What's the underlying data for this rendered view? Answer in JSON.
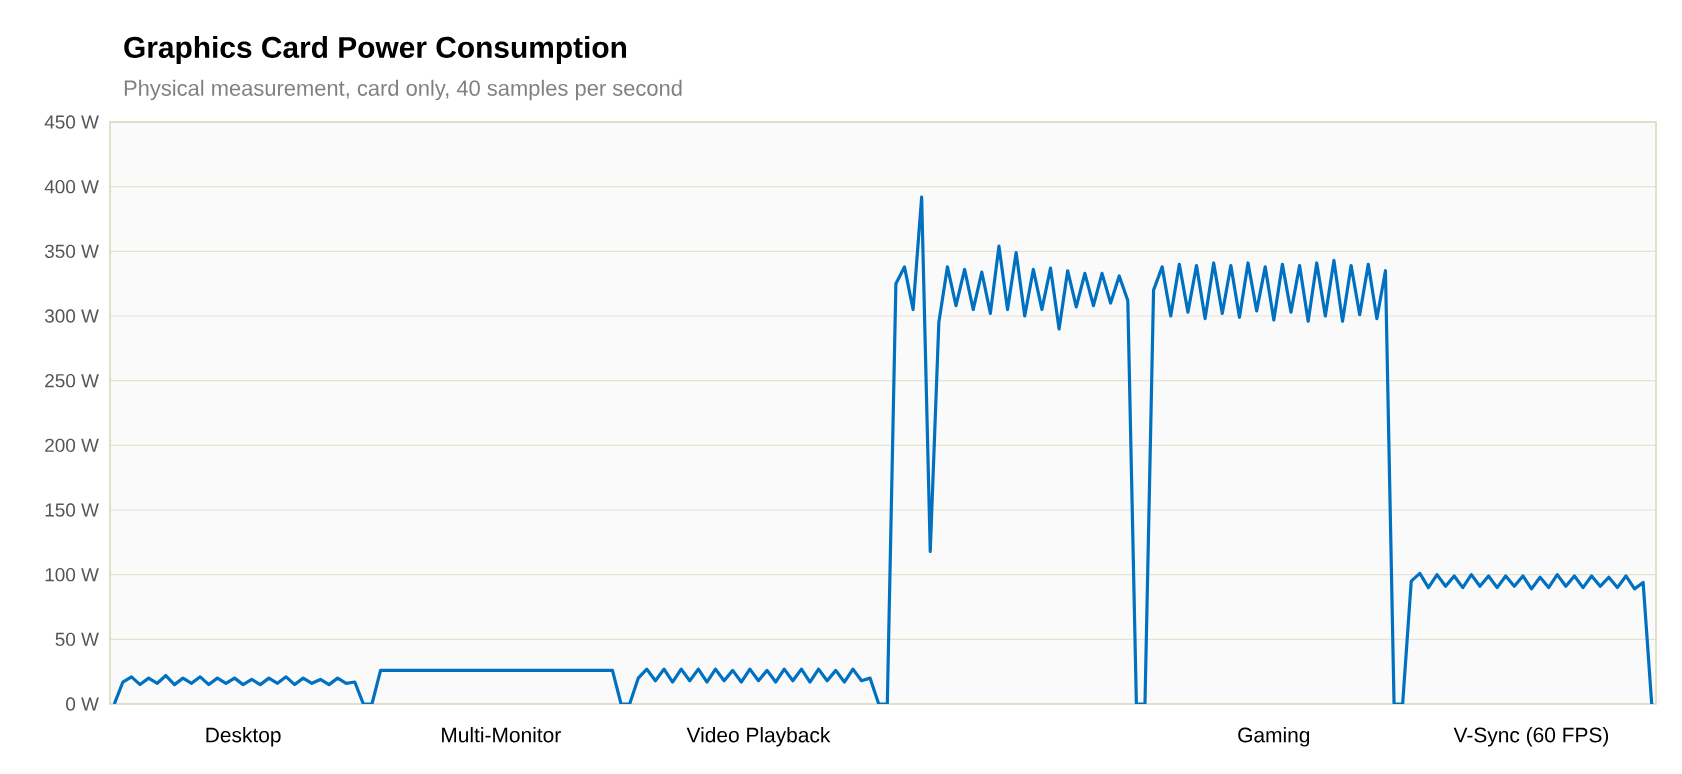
{
  "chart_data": {
    "type": "line",
    "title": "Graphics Card Power Consumption",
    "subtitle": "Physical measurement, card only, 40 samples per second",
    "categories": [
      null,
      null,
      null,
      null,
      null,
      null,
      null,
      null,
      null,
      null,
      null,
      null,
      null,
      null,
      null,
      "Desktop",
      null,
      null,
      null,
      null,
      null,
      null,
      null,
      null,
      null,
      null,
      null,
      null,
      null,
      null,
      null,
      null,
      null,
      null,
      null,
      null,
      null,
      null,
      null,
      null,
      null,
      null,
      null,
      null,
      null,
      "Multi-Monitor",
      null,
      null,
      null,
      null,
      null,
      null,
      null,
      null,
      null,
      null,
      null,
      null,
      null,
      null,
      null,
      null,
      null,
      null,
      null,
      null,
      null,
      null,
      null,
      null,
      null,
      null,
      null,
      null,
      null,
      "Video Playback",
      null,
      null,
      null,
      null,
      null,
      null,
      null,
      null,
      null,
      null,
      null,
      null,
      null,
      null,
      null,
      null,
      null,
      null,
      null,
      null,
      null,
      null,
      null,
      null,
      null,
      null,
      null,
      null,
      null,
      null,
      null,
      null,
      null,
      null,
      null,
      null,
      null,
      null,
      null,
      null,
      null,
      null,
      null,
      null,
      null,
      null,
      null,
      null,
      null,
      null,
      null,
      null,
      null,
      null,
      null,
      null,
      null,
      null,
      null,
      "Gaming",
      null,
      null,
      null,
      null,
      null,
      null,
      null,
      null,
      null,
      null,
      null,
      null,
      null,
      null,
      null,
      null,
      null,
      null,
      null,
      null,
      null,
      null,
      null,
      null,
      null,
      null,
      null,
      null,
      null,
      "V-Sync (60 FPS)",
      null,
      null,
      null,
      null,
      null,
      null,
      null,
      null,
      null,
      null,
      null,
      null,
      null,
      null
    ],
    "ylim": [
      0,
      450
    ],
    "yticks": [
      {
        "value": 0,
        "label": "0 W"
      },
      {
        "value": 50,
        "label": "50 W"
      },
      {
        "value": 100,
        "label": "100 W"
      },
      {
        "value": 150,
        "label": "150 W"
      },
      {
        "value": 200,
        "label": "200 W"
      },
      {
        "value": 250,
        "label": "250 W"
      },
      {
        "value": 300,
        "label": "300 W"
      },
      {
        "value": 350,
        "label": "350 W"
      },
      {
        "value": 400,
        "label": "400 W"
      },
      {
        "value": 450,
        "label": "450 W"
      }
    ],
    "grid": "y",
    "series": [
      {
        "color": "#0070c0",
        "values": [
          0,
          17,
          21,
          15,
          20,
          16,
          22,
          15,
          20,
          16,
          21,
          15,
          20,
          16,
          20,
          15,
          19,
          15,
          20,
          16,
          21,
          15,
          20,
          16,
          19,
          15,
          20,
          16,
          17,
          0,
          0,
          26,
          26,
          26,
          26,
          26,
          26,
          26,
          26,
          26,
          26,
          26,
          26,
          26,
          26,
          26,
          26,
          26,
          26,
          26,
          26,
          26,
          26,
          26,
          26,
          26,
          26,
          26,
          26,
          0,
          0,
          20,
          27,
          18,
          27,
          17,
          27,
          18,
          27,
          17,
          27,
          18,
          26,
          17,
          27,
          18,
          26,
          17,
          27,
          18,
          27,
          17,
          27,
          18,
          26,
          17,
          27,
          18,
          20,
          0,
          0,
          325,
          338,
          305,
          392,
          118,
          295,
          338,
          308,
          336,
          305,
          334,
          302,
          354,
          305,
          349,
          300,
          336,
          305,
          337,
          290,
          335,
          307,
          333,
          308,
          333,
          310,
          331,
          312,
          0,
          0,
          320,
          338,
          300,
          340,
          303,
          339,
          298,
          341,
          302,
          339,
          299,
          341,
          304,
          338,
          297,
          340,
          303,
          339,
          296,
          341,
          300,
          343,
          296,
          339,
          301,
          340,
          298,
          335,
          0,
          0,
          95,
          101,
          90,
          100,
          91,
          99,
          90,
          100,
          91,
          99,
          90,
          99,
          91,
          99,
          89,
          98,
          90,
          100,
          91,
          99,
          90,
          99,
          91,
          98,
          90,
          99,
          89,
          94,
          0
        ]
      }
    ]
  }
}
